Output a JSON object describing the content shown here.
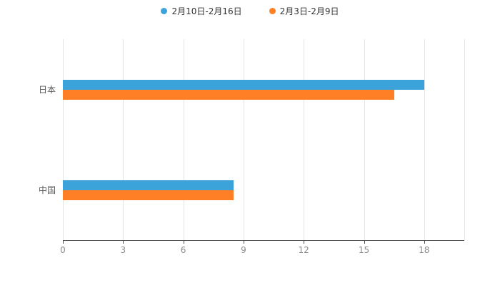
{
  "chart_data": {
    "type": "bar",
    "orientation": "horizontal",
    "title": "",
    "categories": [
      "日本",
      "中国"
    ],
    "series": [
      {
        "name": "2月10日-2月16日",
        "color": "#3ba2da",
        "values": [
          18,
          8.5
        ]
      },
      {
        "name": "2月3日-2月9日",
        "color": "#ff7f27",
        "values": [
          16.5,
          8.5
        ]
      }
    ],
    "xticks": [
      0,
      3,
      6,
      9,
      12,
      15,
      18
    ],
    "xmax": 20,
    "xlabel": "",
    "ylabel": "",
    "grid": true,
    "legend_position": "top",
    "colors": {
      "gridline": "#e4e4e4",
      "axis_line": "#4d4d4d",
      "tick_label": "#8c8c8c",
      "category_label": "#595959"
    }
  }
}
